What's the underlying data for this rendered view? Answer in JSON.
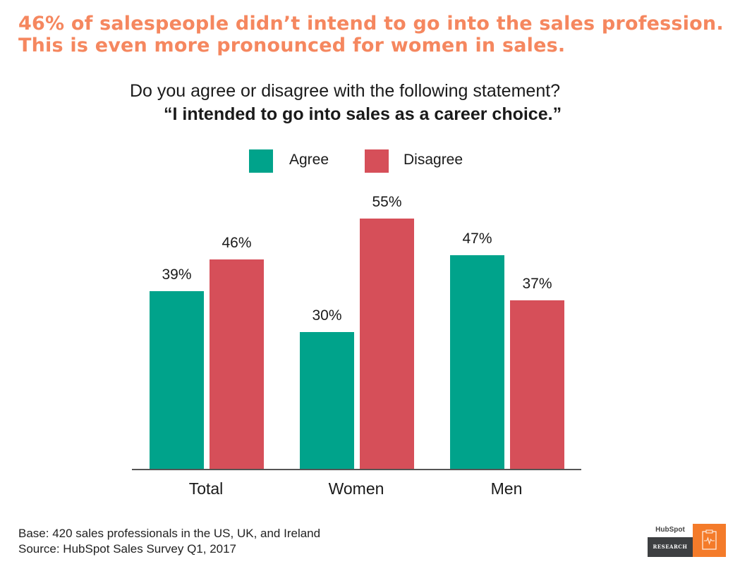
{
  "headline": {
    "line1": "46% of salespeople didn’t intend to go into the sales profession.",
    "line2": "This is even more pronounced for women in sales."
  },
  "question": {
    "line1": "Do you agree or disagree with the following statement?",
    "line2": "“I intended to go into sales as a career choice.”"
  },
  "legend": [
    {
      "label": "Agree",
      "color": "#00a38b"
    },
    {
      "label": "Disagree",
      "color": "#d64f59"
    }
  ],
  "chart_data": {
    "type": "bar",
    "title": "Do you agree or disagree with the following statement? “I intended to go into sales as a career choice.”",
    "categories": [
      "Total",
      "Women",
      "Men"
    ],
    "series": [
      {
        "name": "Agree",
        "color": "#00a38b",
        "values": [
          39,
          30,
          47
        ],
        "labels": [
          "39%",
          "30%",
          "47%"
        ]
      },
      {
        "name": "Disagree",
        "color": "#d64f59",
        "values": [
          46,
          55,
          37
        ],
        "labels": [
          "46%",
          "55%",
          "37%"
        ]
      }
    ],
    "xlabel": "",
    "ylabel": "",
    "ylim": [
      0,
      55
    ],
    "grid": false,
    "legend_position": "top"
  },
  "footer": {
    "base": "Base: 420 sales professionals in the US, UK, and Ireland",
    "source": "Source: HubSpot Sales Survey Q1, 2017"
  },
  "logo": {
    "brand": "HubSpot",
    "tag": "RESEARCH"
  }
}
